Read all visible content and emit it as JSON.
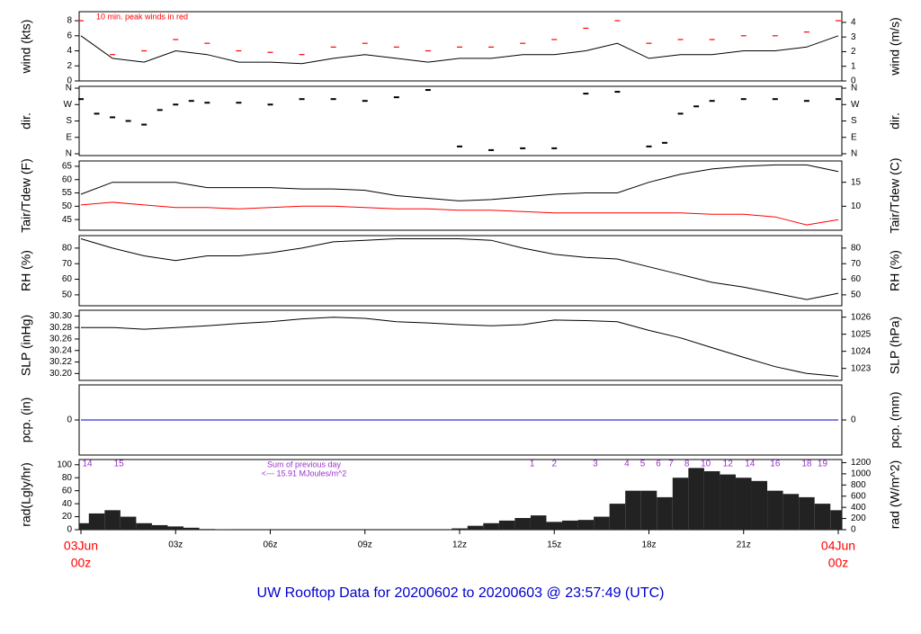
{
  "title": "UW Rooftop Data for 20200602  to  20200603 @ 23:57:49  (UTC)",
  "time_axis": {
    "xlim": [
      0,
      24
    ],
    "xticks": [
      {
        "value": 3,
        "label": "03z"
      },
      {
        "value": 6,
        "label": "06z"
      },
      {
        "value": 9,
        "label": "09z"
      },
      {
        "value": 12,
        "label": "12z"
      },
      {
        "value": 15,
        "label": "15z"
      },
      {
        "value": 18,
        "label": "18z"
      },
      {
        "value": 21,
        "label": "21z"
      }
    ],
    "date_labels": [
      {
        "value": 0,
        "label": "03Jun",
        "sub": "00z"
      },
      {
        "value": 24,
        "label": "04Jun",
        "sub": "00z"
      }
    ]
  },
  "chart_data": [
    {
      "type": "line",
      "ylabel": "wind (kts)",
      "y2label": "wind (m/s)",
      "annotation": "10 min. peak winds in red",
      "ylim": [
        0,
        9.2
      ],
      "yticks": [
        0,
        2,
        4,
        6,
        8
      ],
      "y2lim": [
        0,
        4.73
      ],
      "y2ticks": [
        0,
        1,
        2,
        3,
        4
      ],
      "x": [
        0,
        1,
        2,
        3,
        4,
        5,
        6,
        7,
        8,
        9,
        10,
        11,
        12,
        13,
        14,
        15,
        16,
        17,
        18,
        19,
        20,
        21,
        22,
        23,
        24
      ],
      "series": [
        {
          "name": "wind",
          "color": "#000000",
          "style": "line",
          "values": [
            6,
            3,
            2.5,
            4,
            3.5,
            2.5,
            2.5,
            2.3,
            3,
            3.5,
            3,
            2.5,
            3,
            3,
            3.5,
            3.5,
            4,
            5,
            3,
            3.5,
            3.5,
            4,
            4,
            4.5,
            6
          ]
        },
        {
          "name": "peak",
          "color": "#ff0000",
          "style": "dash",
          "values": [
            8,
            3.5,
            4,
            5.5,
            5,
            4,
            3.8,
            3.5,
            4.5,
            5,
            4.5,
            4,
            4.5,
            4.5,
            5,
            5.5,
            7,
            8,
            5,
            5.5,
            5.5,
            6,
            6,
            6.5,
            8
          ]
        }
      ]
    },
    {
      "type": "scatter",
      "ylabel": "dir.",
      "y2label": "dir.",
      "ylim": [
        -10,
        370
      ],
      "yticks": [
        {
          "value": 0,
          "label": "N"
        },
        {
          "value": 90,
          "label": "E"
        },
        {
          "value": 180,
          "label": "S"
        },
        {
          "value": 270,
          "label": "W"
        },
        {
          "value": 360,
          "label": "N"
        }
      ],
      "y2lim": [
        -10,
        370
      ],
      "y2ticks": [
        {
          "value": 0,
          "label": "N"
        },
        {
          "value": 90,
          "label": "E"
        },
        {
          "value": 180,
          "label": "S"
        },
        {
          "value": 270,
          "label": "W"
        },
        {
          "value": 360,
          "label": "N"
        }
      ],
      "x": [
        0,
        0.5,
        1,
        1.5,
        2,
        2.5,
        3,
        3.5,
        4,
        5,
        6,
        7,
        8,
        9,
        10,
        11,
        12,
        13,
        14,
        15,
        16,
        17,
        18,
        18.5,
        19,
        19.5,
        20,
        21,
        22,
        23,
        24
      ],
      "series": [
        {
          "name": "dir",
          "color": "#000000",
          "values": [
            300,
            220,
            200,
            180,
            160,
            240,
            270,
            290,
            280,
            280,
            270,
            300,
            300,
            290,
            310,
            350,
            40,
            20,
            30,
            30,
            330,
            340,
            40,
            60,
            220,
            260,
            290,
            300,
            300,
            290,
            300
          ]
        }
      ]
    },
    {
      "type": "line",
      "ylabel": "Tair/Tdew (F)",
      "y2label": "Tair/Tdew (C)",
      "ylim": [
        41,
        67
      ],
      "yticks": [
        45,
        50,
        55,
        60,
        65
      ],
      "y2lim": [
        5,
        19.44
      ],
      "y2ticks": [
        10,
        15
      ],
      "x": [
        0,
        1,
        2,
        3,
        4,
        5,
        6,
        7,
        8,
        9,
        10,
        11,
        12,
        13,
        14,
        15,
        16,
        17,
        18,
        19,
        20,
        21,
        22,
        23,
        24
      ],
      "series": [
        {
          "name": "Tair",
          "color": "#000000",
          "style": "line",
          "values": [
            54.5,
            59,
            59,
            59,
            57,
            57,
            57,
            56.5,
            56.5,
            56,
            54,
            53,
            52,
            52.5,
            53.5,
            54.5,
            55,
            55,
            59,
            62,
            64,
            65,
            65.5,
            65.5,
            63
          ]
        },
        {
          "name": "Tdew",
          "color": "#ff0000",
          "style": "line",
          "values": [
            50.5,
            51.5,
            50.5,
            49.5,
            49.5,
            49,
            49.5,
            50,
            50,
            49.5,
            49,
            49,
            48.5,
            48.5,
            48,
            47.5,
            47.5,
            47.5,
            47.5,
            47.5,
            47,
            47,
            46,
            43,
            45
          ]
        }
      ]
    },
    {
      "type": "line",
      "ylabel": "RH (%)",
      "y2label": "RH (%)",
      "ylim": [
        43,
        88
      ],
      "yticks": [
        50,
        60,
        70,
        80
      ],
      "y2lim": [
        43,
        88
      ],
      "y2ticks": [
        50,
        60,
        70,
        80
      ],
      "x": [
        0,
        1,
        2,
        3,
        4,
        5,
        6,
        7,
        8,
        9,
        10,
        11,
        12,
        13,
        14,
        15,
        16,
        17,
        18,
        19,
        20,
        21,
        22,
        23,
        24
      ],
      "series": [
        {
          "name": "RH",
          "color": "#000000",
          "style": "line",
          "values": [
            86,
            80,
            75,
            72,
            75,
            75,
            77,
            80,
            84,
            85,
            86,
            86,
            86,
            85,
            80,
            76,
            74,
            73,
            68,
            63,
            58,
            55,
            51,
            47,
            51
          ]
        }
      ]
    },
    {
      "type": "line",
      "ylabel": "SLP (inHg)",
      "y2label": "SLP (hPa)",
      "ylim": [
        30.188,
        30.31
      ],
      "yticks": [
        {
          "value": 30.2,
          "label": "30.20"
        },
        30.22,
        30.24,
        30.26,
        30.28,
        {
          "value": 30.3,
          "label": "30.30"
        }
      ],
      "y2lim": [
        1022.3,
        1026.4
      ],
      "y2ticks": [
        1023,
        1024,
        1025,
        1026
      ],
      "x": [
        0,
        1,
        2,
        3,
        4,
        5,
        6,
        7,
        8,
        9,
        10,
        11,
        12,
        13,
        14,
        15,
        16,
        17,
        18,
        19,
        20,
        21,
        22,
        23,
        24
      ],
      "series": [
        {
          "name": "SLP",
          "color": "#000000",
          "style": "line",
          "values": [
            30.28,
            30.28,
            30.277,
            30.28,
            30.283,
            30.287,
            30.29,
            30.295,
            30.298,
            30.296,
            30.29,
            30.288,
            30.285,
            30.283,
            30.285,
            30.293,
            30.292,
            30.29,
            30.275,
            30.262,
            30.245,
            30.228,
            30.212,
            30.2,
            30.195
          ]
        }
      ]
    },
    {
      "type": "line",
      "ylabel": "pcp. (in)",
      "y2label": "pcp. (mm)",
      "ylim": [
        -1,
        1
      ],
      "yticks": [
        0
      ],
      "y2lim": [
        -25.4,
        25.4
      ],
      "y2ticks": [
        0
      ],
      "x": [
        0,
        24
      ],
      "series": [
        {
          "name": "pcp",
          "color": "#0000cc",
          "style": "line",
          "values": [
            0,
            0
          ]
        }
      ]
    },
    {
      "type": "bar",
      "ylabel": "rad(Lgly/hr)",
      "y2label": "rad (W/m^2)",
      "annotation": "Sum of previous day",
      "annotation2": "<--- 15.91 MJoules/m^2",
      "ylim": [
        0,
        108
      ],
      "yticks": [
        0,
        20,
        40,
        60,
        80,
        100
      ],
      "y2lim": [
        0,
        1256
      ],
      "y2ticks": [
        0,
        200,
        400,
        600,
        800,
        1000,
        1200
      ],
      "color": "#222222",
      "x": [
        0,
        0.5,
        1,
        1.5,
        2,
        2.5,
        3,
        3.5,
        4,
        4.5,
        5,
        5.5,
        6,
        6.5,
        7,
        7.5,
        8,
        8.5,
        9,
        9.5,
        10,
        10.5,
        11,
        11.5,
        12,
        12.5,
        13,
        13.5,
        14,
        14.5,
        15,
        15.5,
        16,
        16.5,
        17,
        17.5,
        18,
        18.5,
        19,
        19.5,
        20,
        20.5,
        21,
        21.5,
        22,
        22.5,
        23,
        23.5,
        24
      ],
      "values": [
        10,
        25,
        30,
        20,
        10,
        7,
        5,
        3,
        1,
        0.5,
        0,
        0,
        0,
        0,
        0,
        0,
        0,
        0,
        0,
        0,
        0,
        0,
        0,
        0,
        2,
        6,
        10,
        14,
        18,
        22,
        12,
        14,
        15,
        20,
        40,
        60,
        60,
        50,
        80,
        95,
        90,
        85,
        80,
        75,
        60,
        55,
        50,
        40,
        30
      ],
      "hour_marks": {
        "x": [
          0.2,
          1.2,
          14.3,
          15,
          16.3,
          17.3,
          17.8,
          18.3,
          18.7,
          19.2,
          19.8,
          20.5,
          21.2,
          22,
          23,
          23.5
        ],
        "labels": [
          "14",
          "15",
          "1",
          "2",
          "3",
          "4",
          "5",
          "6",
          "7",
          "8",
          "10",
          "12",
          "14",
          "16",
          "18",
          "19"
        ]
      }
    }
  ]
}
